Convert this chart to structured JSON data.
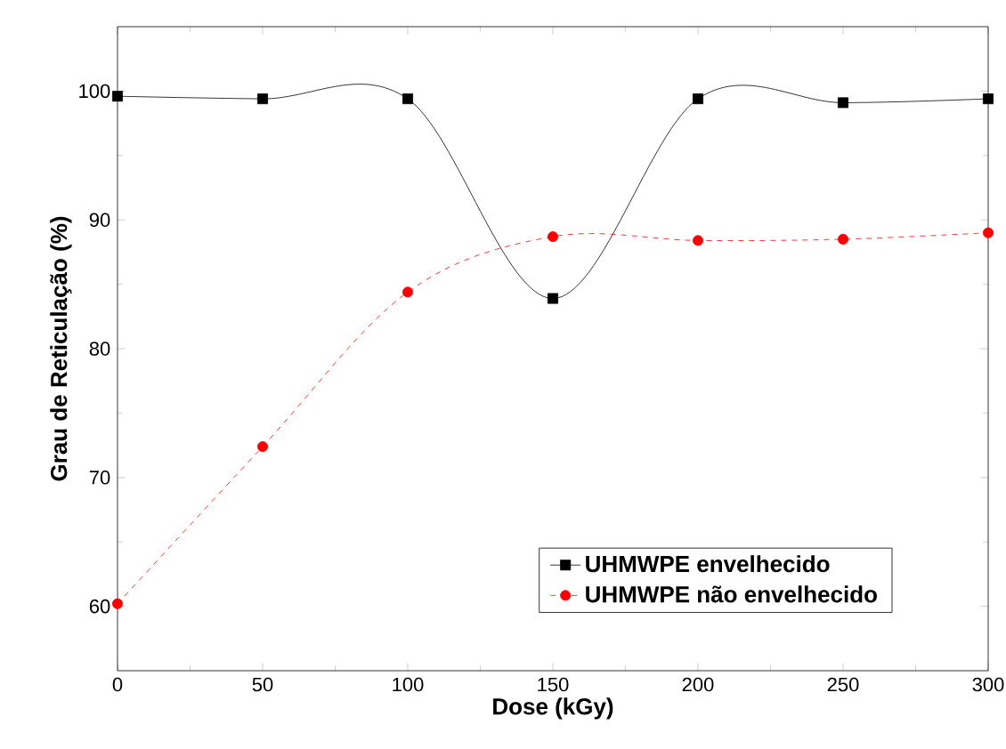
{
  "chart_data": {
    "type": "line",
    "xlabel": "Dose (kGy)",
    "ylabel": "Grau de Reticulação (%)",
    "x": [
      0,
      50,
      100,
      150,
      200,
      250,
      300
    ],
    "series": [
      {
        "name": "UHMWPE envelhecido",
        "color": "#000000",
        "marker": "square",
        "line_style": "solid",
        "values": [
          99.6,
          99.4,
          99.4,
          83.9,
          99.4,
          99.1,
          99.4
        ]
      },
      {
        "name": "UHMWPE não envelhecido",
        "color": "#ff0000",
        "marker": "circle",
        "line_style": "dashed",
        "values": [
          60.2,
          72.4,
          84.4,
          88.7,
          88.4,
          88.5,
          89.0
        ]
      }
    ],
    "xlim": [
      0,
      300
    ],
    "ylim": [
      55,
      105
    ],
    "xticks": [
      0,
      50,
      100,
      150,
      200,
      250,
      300
    ],
    "yticks": [
      60,
      70,
      80,
      90,
      100
    ],
    "legend": "bottom right",
    "grid": false
  }
}
